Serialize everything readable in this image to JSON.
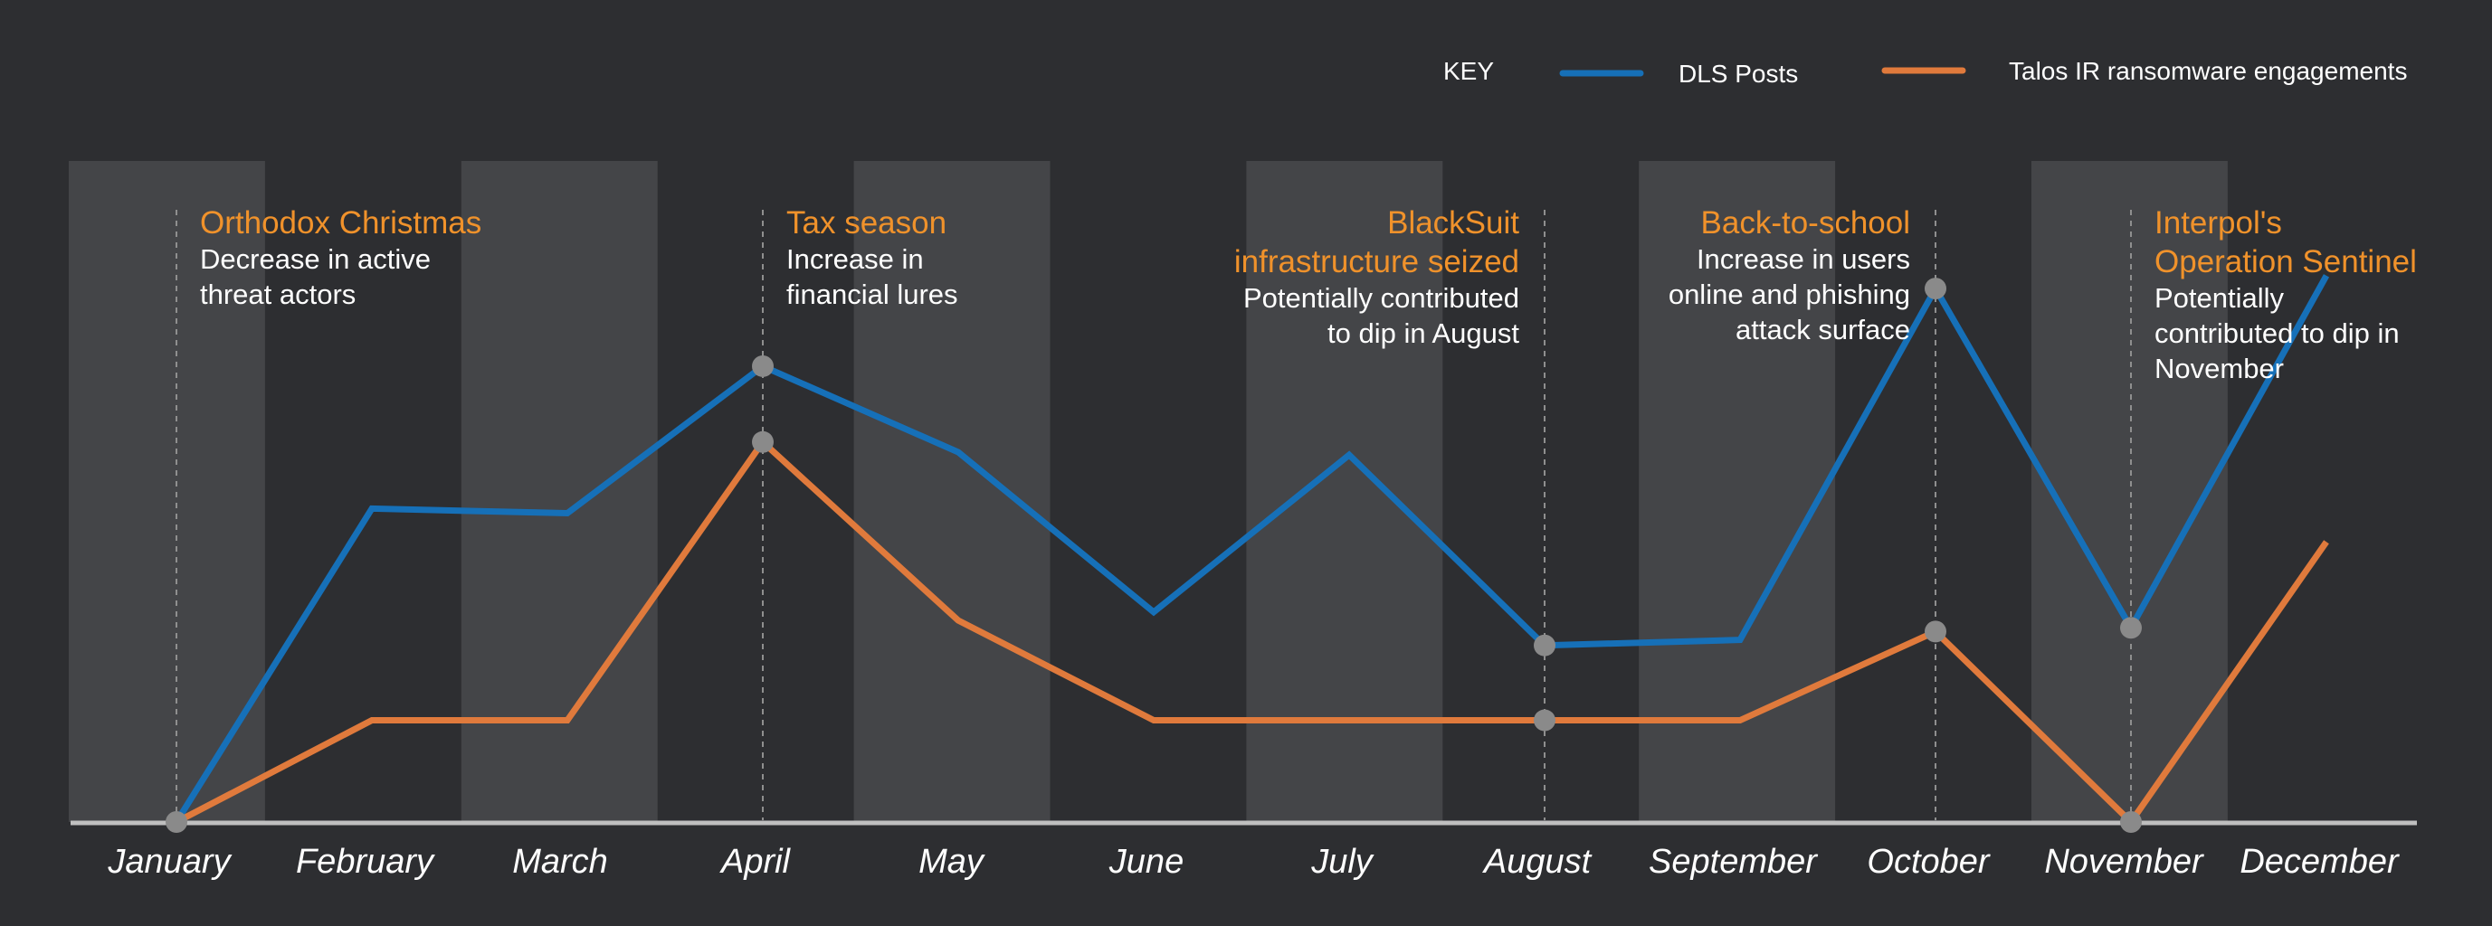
{
  "legend": {
    "key_label": "KEY",
    "items": [
      {
        "label": "DLS Posts",
        "color": "#1670b8"
      },
      {
        "label": "Talos IR ransomware engagements",
        "color": "#e07a3c"
      }
    ]
  },
  "chart_data": {
    "type": "line",
    "categories": [
      "January",
      "February",
      "March",
      "April",
      "May",
      "June",
      "July",
      "August",
      "September",
      "October",
      "November",
      "December"
    ],
    "series": [
      {
        "name": "DLS Posts",
        "color": "#1670b8",
        "values": [
          0.0,
          3.39,
          3.34,
          4.93,
          4.0,
          2.27,
          3.97,
          1.91,
          1.97,
          5.77,
          2.1,
          5.91
        ]
      },
      {
        "name": "Talos IR ransomware engagements",
        "color": "#e07a3c",
        "values": [
          0.0,
          1.1,
          1.1,
          4.11,
          2.18,
          1.1,
          1.1,
          1.1,
          1.1,
          2.06,
          0.0,
          3.03
        ]
      }
    ],
    "highlight_points": [
      {
        "category": "January",
        "series": [
          0
        ]
      },
      {
        "category": "April",
        "series": [
          0,
          1
        ]
      },
      {
        "category": "August",
        "series": [
          0,
          1
        ]
      },
      {
        "category": "October",
        "series": [
          0,
          1
        ]
      },
      {
        "category": "November",
        "series": [
          0,
          1
        ]
      }
    ],
    "ylim": [
      0,
      10
    ],
    "y_axis_labels": false,
    "grid": false,
    "shaded_month_bands": [
      "January",
      "March",
      "May",
      "July",
      "September",
      "November"
    ],
    "legend_position": "top-right",
    "colors": {
      "background": "#2d2e31",
      "band": "#444548",
      "axis": "#bfbfbf",
      "marker": "#8a8a8a",
      "annotation_title": "#f0922b",
      "annotation_text": "#ffffff",
      "guide_line": "#8f8f8f"
    },
    "annotations": [
      {
        "category": "January",
        "align": "right",
        "title_lines": [
          "Orthodox Christmas"
        ],
        "body_lines": [
          "Decrease in active",
          "threat actors"
        ]
      },
      {
        "category": "April",
        "align": "right",
        "title_lines": [
          "Tax season"
        ],
        "body_lines": [
          "Increase in",
          "financial lures"
        ]
      },
      {
        "category": "August",
        "align": "left",
        "title_lines": [
          "BlackSuit",
          "infrastructure seized"
        ],
        "body_lines": [
          "Potentially contributed",
          "to dip in August"
        ]
      },
      {
        "category": "October",
        "align": "left",
        "title_lines": [
          "Back-to-school"
        ],
        "body_lines": [
          "Increase in users",
          "online and phishing",
          "attack surface"
        ]
      },
      {
        "category": "November",
        "align": "right",
        "title_lines": [
          "Interpol's",
          "Operation Sentinel"
        ],
        "body_lines": [
          "Potentially",
          "contributed to dip in",
          "November"
        ]
      }
    ]
  }
}
